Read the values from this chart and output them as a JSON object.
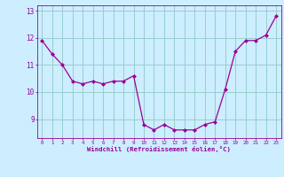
{
  "x": [
    0,
    1,
    2,
    3,
    4,
    5,
    6,
    7,
    8,
    9,
    10,
    11,
    12,
    13,
    14,
    15,
    16,
    17,
    18,
    19,
    20,
    21,
    22,
    23
  ],
  "y": [
    11.9,
    11.4,
    11.0,
    10.4,
    10.3,
    10.4,
    10.3,
    10.4,
    10.4,
    10.6,
    8.8,
    8.6,
    8.8,
    8.6,
    8.6,
    8.6,
    8.8,
    8.9,
    10.1,
    11.5,
    11.9,
    11.9,
    12.1,
    12.8
  ],
  "line_color": "#990099",
  "marker": "D",
  "marker_size": 2,
  "bg_color": "#cceeff",
  "grid_color": "#99cccc",
  "xlabel": "Windchill (Refroidissement éolien,°C)",
  "xlabel_color": "#990099",
  "tick_color": "#990099",
  "ylim": [
    8.3,
    13.2
  ],
  "yticks": [
    9,
    10,
    11,
    12,
    13
  ],
  "xticks": [
    0,
    1,
    2,
    3,
    4,
    5,
    6,
    7,
    8,
    9,
    10,
    11,
    12,
    13,
    14,
    15,
    16,
    17,
    18,
    19,
    20,
    21,
    22,
    23
  ]
}
